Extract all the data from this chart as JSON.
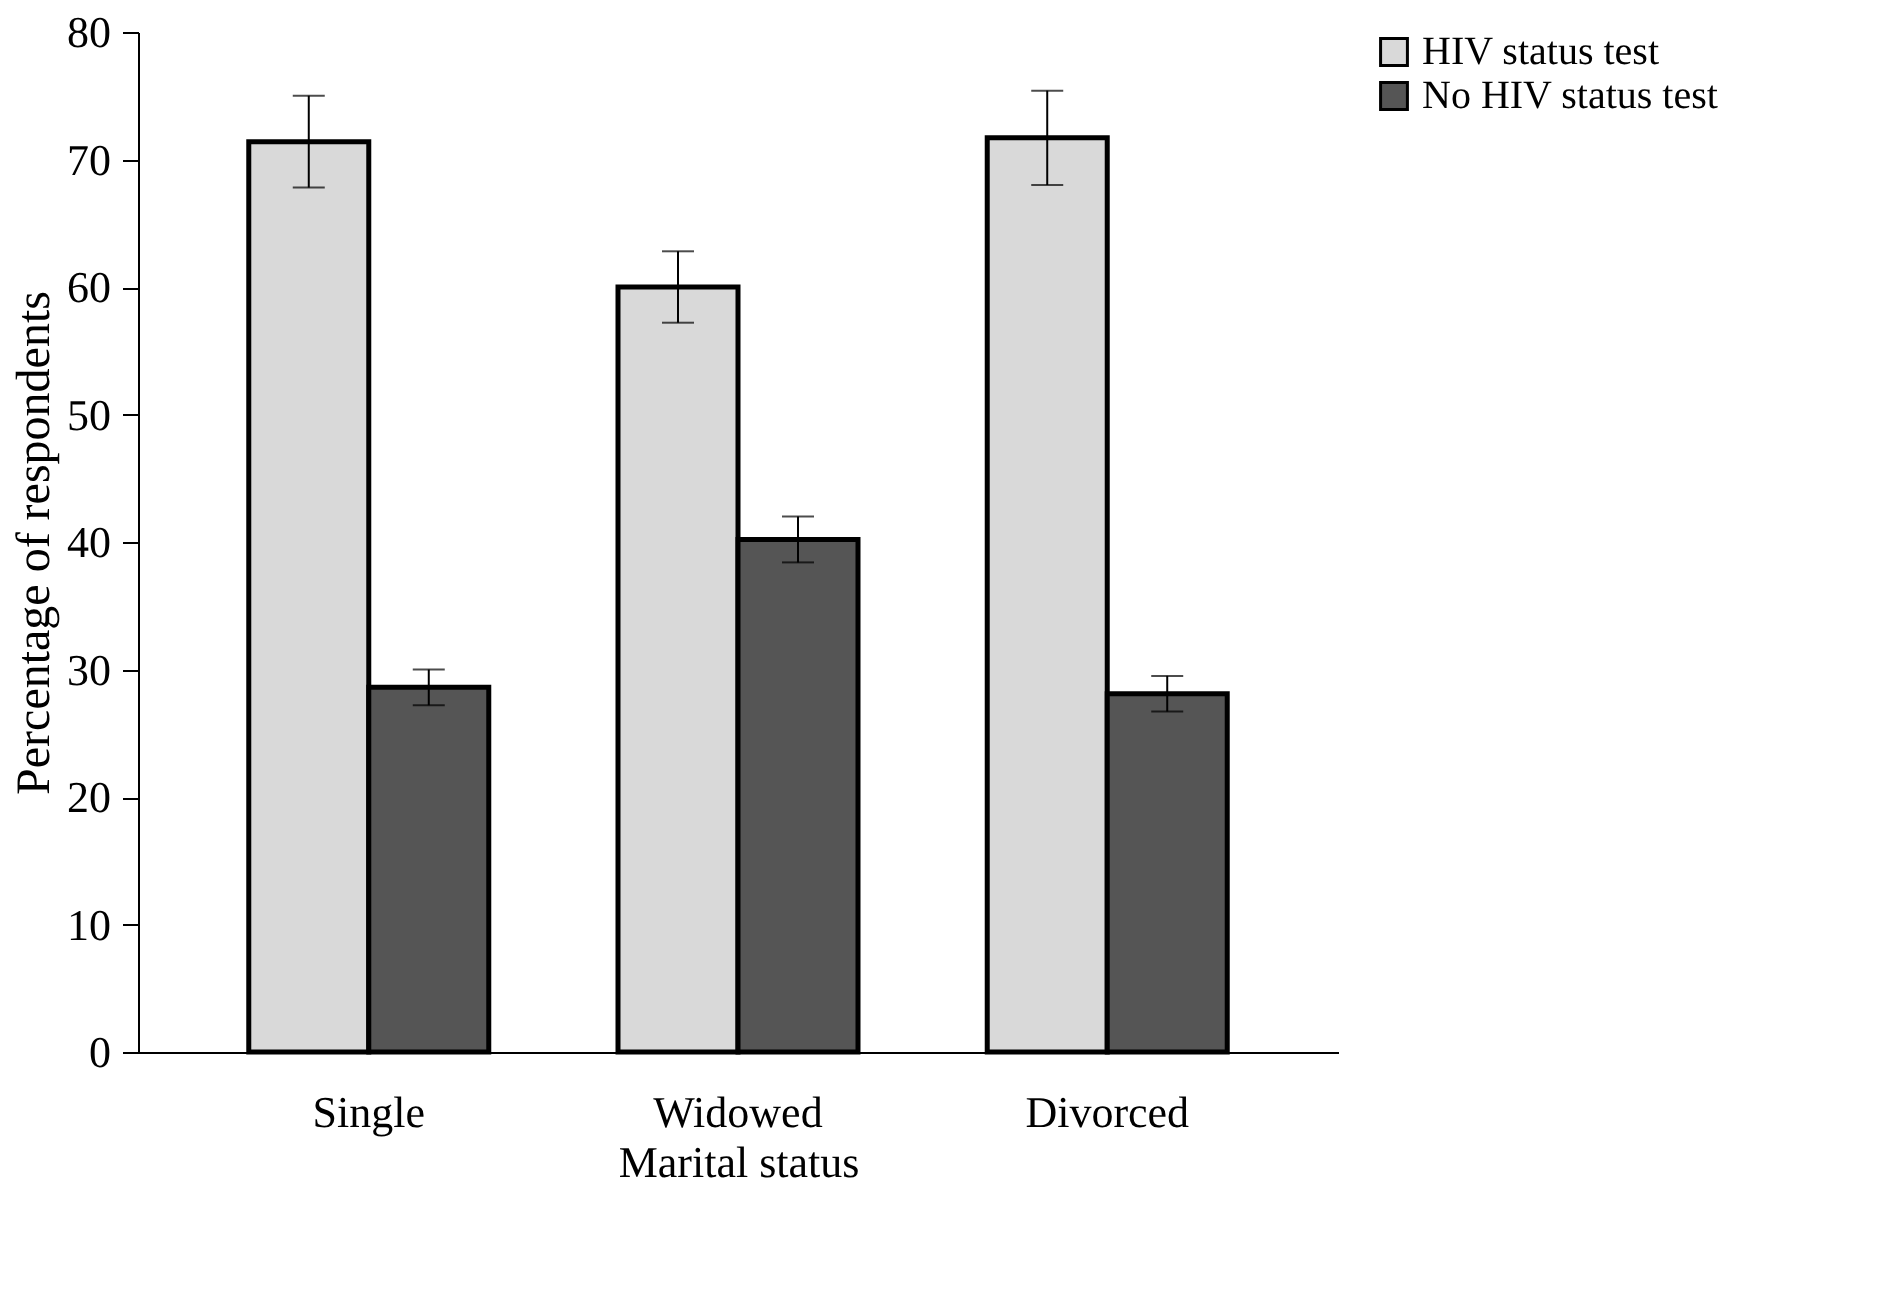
{
  "chart_data": {
    "type": "bar",
    "xlabel": "Marital status",
    "ylabel": "Percentage of respondents",
    "categories": [
      "Single",
      "Widowed",
      "Divorced"
    ],
    "series": [
      {
        "name": "HIV status test",
        "color": "#d9d9d9",
        "values": [
          71.4,
          60.0,
          71.7
        ],
        "errors": [
          3.6,
          2.8,
          3.7
        ]
      },
      {
        "name": "No HIV status test",
        "color": "#555555",
        "values": [
          28.6,
          40.2,
          28.1
        ],
        "errors": [
          1.4,
          1.8,
          1.4
        ]
      }
    ],
    "ylim": [
      0,
      80
    ],
    "yticks": [
      0,
      10,
      20,
      30,
      40,
      50,
      60,
      70,
      80
    ],
    "grid": false,
    "legend": "right"
  }
}
